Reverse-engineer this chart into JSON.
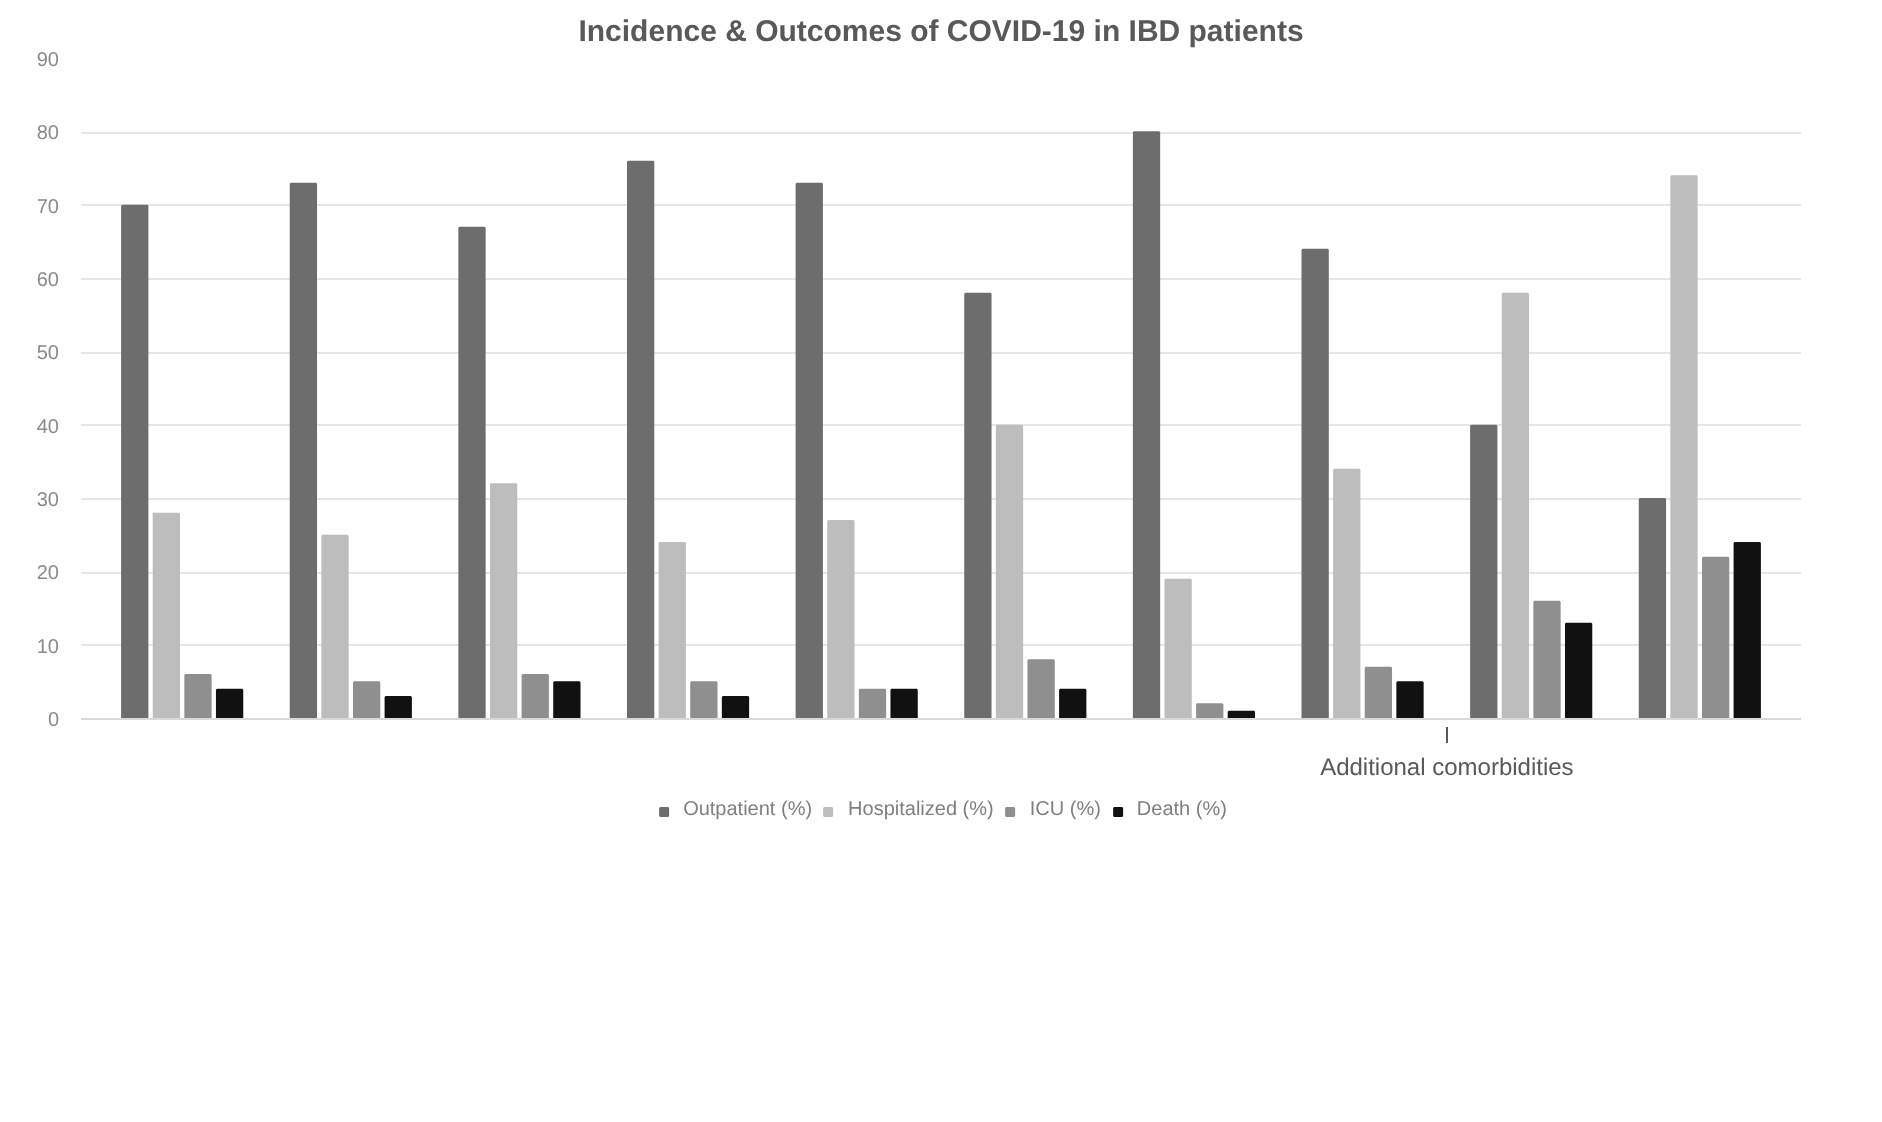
{
  "chart_data": {
    "type": "bar",
    "title": "Incidence & Outcomes of COVID-19 in IBD patients",
    "categories": [
      null,
      null,
      null,
      null,
      null,
      null,
      null,
      null,
      null,
      null
    ],
    "series": [
      {
        "name": "Outpatient (%)",
        "color": "#6d6d6d",
        "values": [
          70,
          73,
          67,
          76,
          73,
          58,
          80,
          64,
          40,
          30
        ]
      },
      {
        "name": "Hospitalized (%)",
        "color": "#bdbdbd",
        "values": [
          28,
          25,
          32,
          24,
          27,
          40,
          19,
          34,
          58,
          74
        ]
      },
      {
        "name": "ICU (%)",
        "color": "#8f8f8f",
        "values": [
          6,
          5,
          6,
          5,
          4,
          8,
          2,
          7,
          16,
          22
        ]
      },
      {
        "name": "Death (%)",
        "color": "#111111",
        "values": [
          4,
          3,
          5,
          3,
          4,
          4,
          1,
          5,
          13,
          24
        ]
      }
    ],
    "ylim": [
      0,
      90
    ],
    "yticks": [
      0,
      10,
      20,
      30,
      40,
      50,
      60,
      70,
      80,
      90
    ],
    "grid": "y",
    "legend": "bottom",
    "annotations": [
      "Additional comorbidities"
    ]
  }
}
